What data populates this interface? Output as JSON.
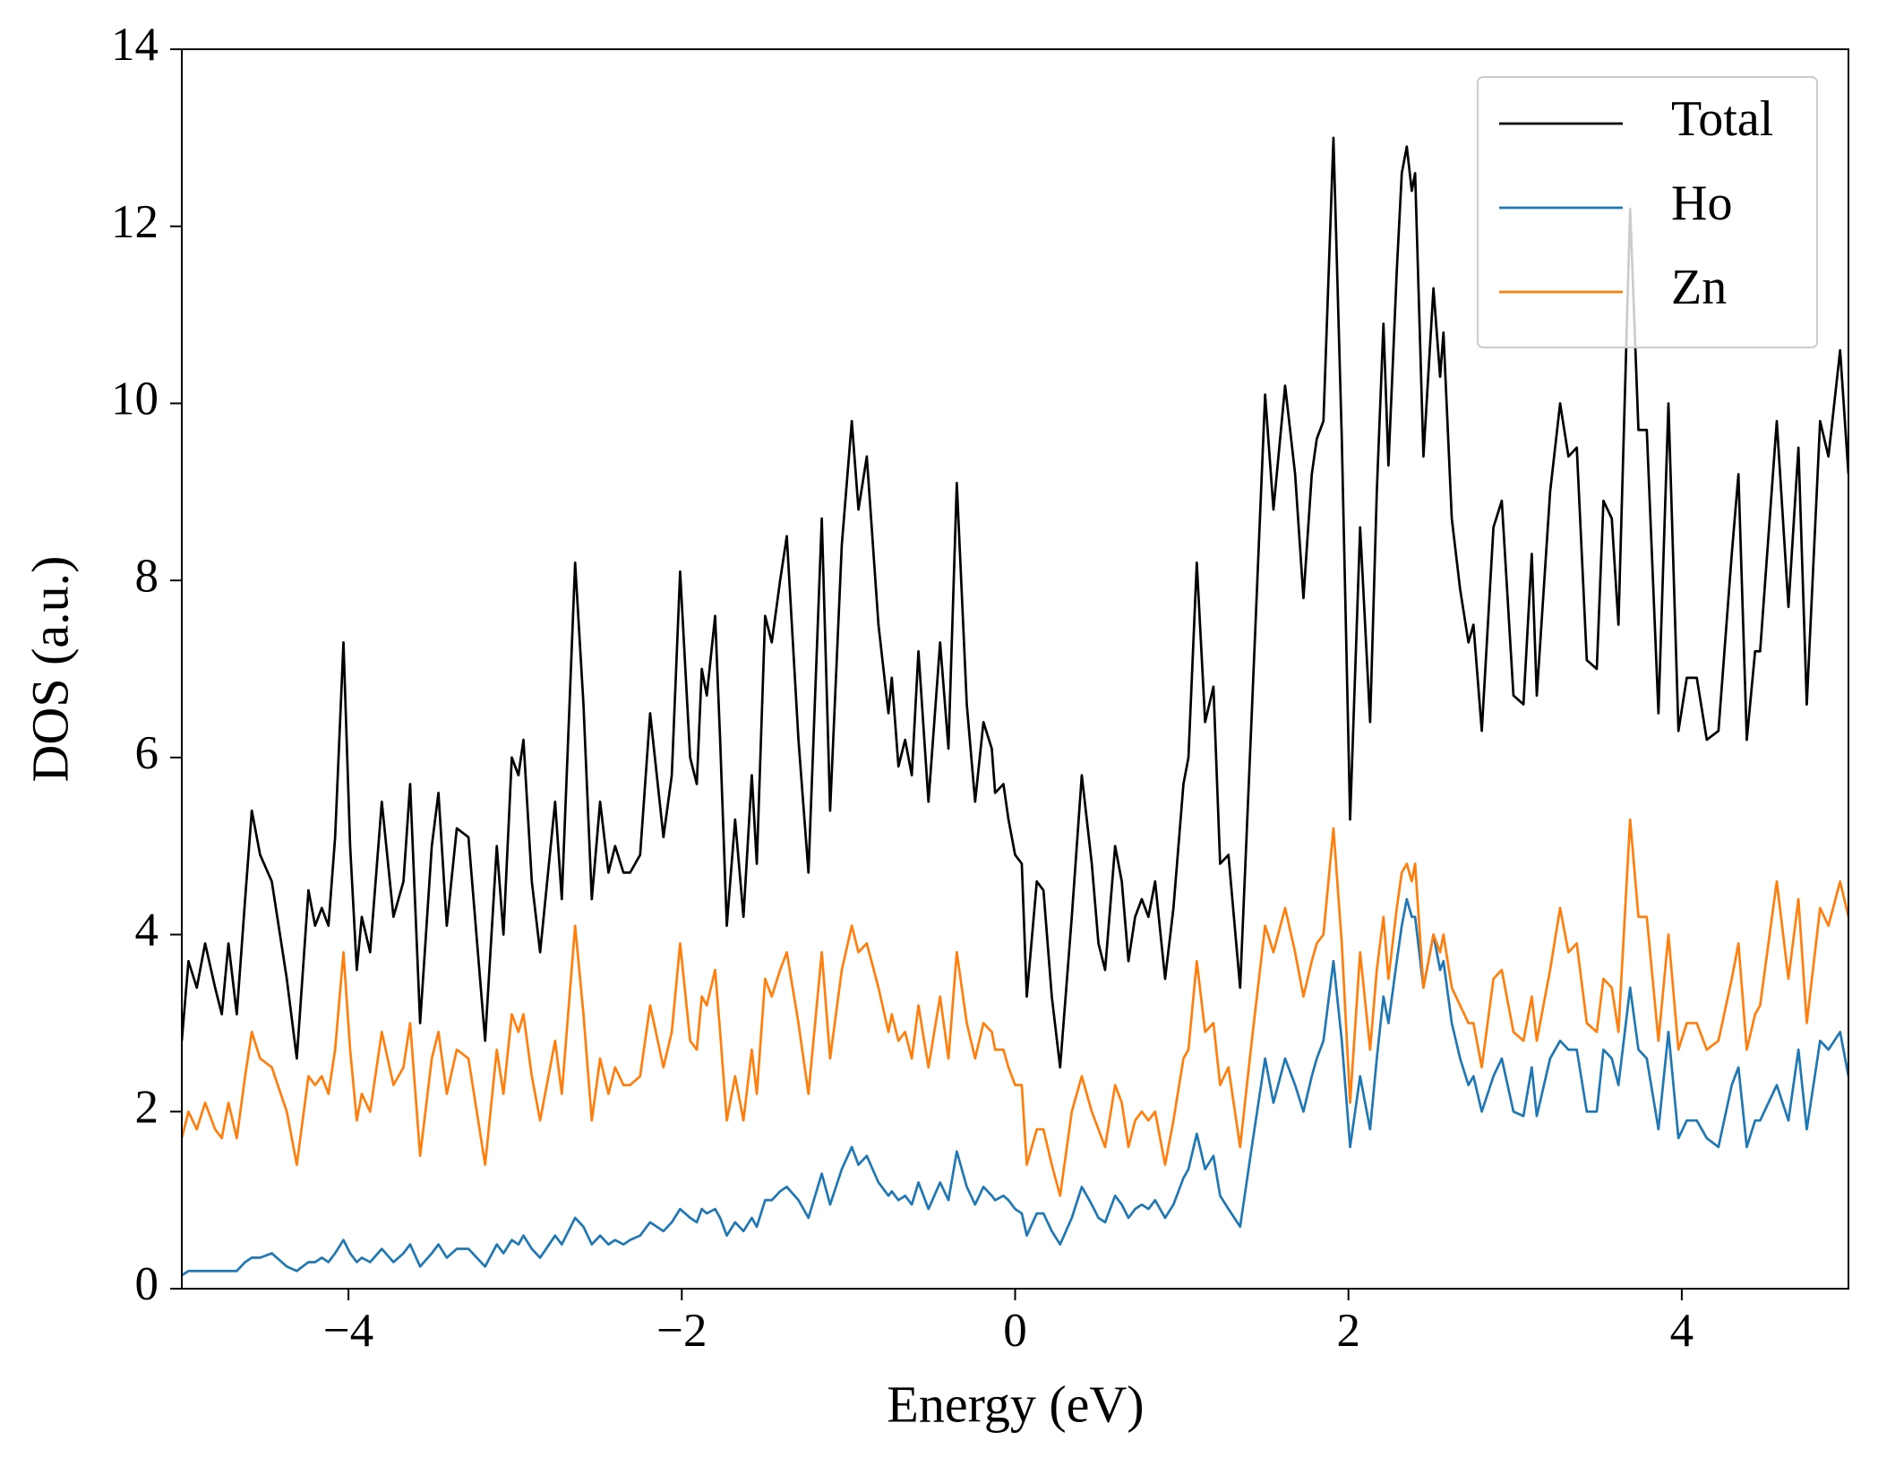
{
  "chart_data": {
    "type": "line",
    "xlabel": "Energy (eV)",
    "ylabel": "DOS (a.u.)",
    "xlim": [
      -5,
      5
    ],
    "ylim": [
      0,
      14
    ],
    "xticks": [
      {
        "value": -4,
        "label": "−4"
      },
      {
        "value": -2,
        "label": "−2"
      },
      0,
      2,
      4
    ],
    "yticks": [
      0,
      2,
      4,
      6,
      8,
      10,
      12,
      14
    ],
    "legend": "upper right",
    "x": [
      -5.0,
      -4.96,
      -4.91,
      -4.86,
      -4.8,
      -4.76,
      -4.72,
      -4.67,
      -4.62,
      -4.58,
      -4.53,
      -4.46,
      -4.37,
      -4.31,
      -4.24,
      -4.2,
      -4.16,
      -4.12,
      -4.08,
      -4.03,
      -3.99,
      -3.95,
      -3.92,
      -3.87,
      -3.8,
      -3.73,
      -3.67,
      -3.63,
      -3.57,
      -3.5,
      -3.46,
      -3.41,
      -3.35,
      -3.28,
      -3.18,
      -3.11,
      -3.07,
      -3.02,
      -2.98,
      -2.95,
      -2.9,
      -2.85,
      -2.76,
      -2.72,
      -2.64,
      -2.59,
      -2.54,
      -2.49,
      -2.44,
      -2.4,
      -2.35,
      -2.31,
      -2.25,
      -2.19,
      -2.11,
      -2.06,
      -2.01,
      -1.95,
      -1.91,
      -1.88,
      -1.85,
      -1.8,
      -1.77,
      -1.73,
      -1.68,
      -1.63,
      -1.58,
      -1.55,
      -1.5,
      -1.46,
      -1.41,
      -1.37,
      -1.3,
      -1.24,
      -1.16,
      -1.11,
      -1.04,
      -0.98,
      -0.94,
      -0.89,
      -0.82,
      -0.76,
      -0.74,
      -0.7,
      -0.66,
      -0.62,
      -0.58,
      -0.52,
      -0.45,
      -0.4,
      -0.35,
      -0.29,
      -0.24,
      -0.19,
      -0.14,
      -0.12,
      -0.07,
      -0.04,
      0.0,
      0.04,
      0.07,
      0.13,
      0.17,
      0.22,
      0.27,
      0.34,
      0.4,
      0.46,
      0.5,
      0.54,
      0.6,
      0.64,
      0.68,
      0.72,
      0.76,
      0.8,
      0.84,
      0.9,
      0.95,
      1.01,
      1.04,
      1.09,
      1.14,
      1.19,
      1.23,
      1.28,
      1.35,
      1.42,
      1.5,
      1.55,
      1.62,
      1.68,
      1.73,
      1.78,
      1.81,
      1.85,
      1.91,
      1.96,
      2.01,
      2.07,
      2.13,
      2.17,
      2.21,
      2.24,
      2.29,
      2.32,
      2.35,
      2.38,
      2.4,
      2.45,
      2.51,
      2.55,
      2.57,
      2.62,
      2.67,
      2.72,
      2.75,
      2.8,
      2.87,
      2.92,
      2.99,
      3.05,
      3.1,
      3.13,
      3.21,
      3.27,
      3.32,
      3.37,
      3.43,
      3.49,
      3.53,
      3.58,
      3.62,
      3.69,
      3.74,
      3.79,
      3.86,
      3.92,
      3.98,
      4.03,
      4.09,
      4.15,
      4.22,
      4.3,
      4.34,
      4.39,
      4.44,
      4.47,
      4.57,
      4.64,
      4.7,
      4.75,
      4.83,
      4.88,
      4.95,
      5.0
    ],
    "series": [
      {
        "name": "Total",
        "color": "#000000",
        "values": [
          2.8,
          3.7,
          3.4,
          3.9,
          3.4,
          3.1,
          3.9,
          3.1,
          4.4,
          5.4,
          4.9,
          4.6,
          3.5,
          2.6,
          4.5,
          4.1,
          4.3,
          4.1,
          5.1,
          7.3,
          5.0,
          3.6,
          4.2,
          3.8,
          5.5,
          4.2,
          4.6,
          5.7,
          3.0,
          5.0,
          5.6,
          4.1,
          5.2,
          5.1,
          2.8,
          5.0,
          4.0,
          6.0,
          5.8,
          6.2,
          4.6,
          3.8,
          5.5,
          4.4,
          8.2,
          6.6,
          4.4,
          5.5,
          4.7,
          5.0,
          4.7,
          4.7,
          4.9,
          6.5,
          5.1,
          5.8,
          8.1,
          6.0,
          5.7,
          7.0,
          6.7,
          7.6,
          6.2,
          4.1,
          5.3,
          4.2,
          5.8,
          4.8,
          7.6,
          7.3,
          8.0,
          8.5,
          6.2,
          4.7,
          8.7,
          5.4,
          8.4,
          9.8,
          8.8,
          9.4,
          7.5,
          6.5,
          6.9,
          5.9,
          6.2,
          5.8,
          7.2,
          5.5,
          7.3,
          6.1,
          9.1,
          6.6,
          5.5,
          6.4,
          6.1,
          5.6,
          5.7,
          5.3,
          4.9,
          4.8,
          3.3,
          4.6,
          4.5,
          3.3,
          2.5,
          4.2,
          5.8,
          4.8,
          3.9,
          3.6,
          5.0,
          4.6,
          3.7,
          4.2,
          4.4,
          4.2,
          4.6,
          3.5,
          4.3,
          5.7,
          6.0,
          8.2,
          6.4,
          6.8,
          4.8,
          4.9,
          3.4,
          6.5,
          10.1,
          8.8,
          10.2,
          9.2,
          7.8,
          9.2,
          9.6,
          9.8,
          13.0,
          9.6,
          5.3,
          8.6,
          6.4,
          9.0,
          10.9,
          9.3,
          11.5,
          12.6,
          12.9,
          12.4,
          12.6,
          9.4,
          11.3,
          10.3,
          10.8,
          8.7,
          7.9,
          7.3,
          7.5,
          6.3,
          8.6,
          8.9,
          6.7,
          6.6,
          8.3,
          6.7,
          9.0,
          10.0,
          9.4,
          9.5,
          7.1,
          7.0,
          8.9,
          8.7,
          7.5,
          12.2,
          9.7,
          9.7,
          6.5,
          10.0,
          6.3,
          6.9,
          6.9,
          6.2,
          6.3,
          8.3,
          9.2,
          6.2,
          7.2,
          7.2,
          9.8,
          7.7,
          9.5,
          6.6,
          9.8,
          9.4,
          10.6,
          9.2
        ]
      },
      {
        "name": "Ho",
        "color": "#1f77b4",
        "values": [
          0.15,
          0.2,
          0.2,
          0.2,
          0.2,
          0.2,
          0.2,
          0.2,
          0.3,
          0.35,
          0.35,
          0.4,
          0.25,
          0.2,
          0.3,
          0.3,
          0.35,
          0.3,
          0.4,
          0.55,
          0.4,
          0.3,
          0.35,
          0.3,
          0.45,
          0.3,
          0.4,
          0.5,
          0.25,
          0.4,
          0.5,
          0.35,
          0.45,
          0.45,
          0.25,
          0.5,
          0.4,
          0.55,
          0.5,
          0.6,
          0.45,
          0.35,
          0.6,
          0.5,
          0.8,
          0.7,
          0.5,
          0.6,
          0.5,
          0.55,
          0.5,
          0.55,
          0.6,
          0.75,
          0.65,
          0.75,
          0.9,
          0.8,
          0.75,
          0.9,
          0.85,
          0.9,
          0.8,
          0.6,
          0.75,
          0.65,
          0.8,
          0.7,
          1.0,
          1.0,
          1.1,
          1.15,
          1.0,
          0.8,
          1.3,
          0.95,
          1.35,
          1.6,
          1.4,
          1.5,
          1.2,
          1.05,
          1.1,
          1.0,
          1.05,
          0.95,
          1.2,
          0.9,
          1.2,
          1.0,
          1.55,
          1.15,
          0.95,
          1.15,
          1.05,
          1.0,
          1.05,
          1.0,
          0.9,
          0.85,
          0.6,
          0.85,
          0.85,
          0.65,
          0.5,
          0.8,
          1.15,
          0.95,
          0.8,
          0.75,
          1.05,
          0.95,
          0.8,
          0.9,
          0.95,
          0.9,
          1.0,
          0.8,
          0.95,
          1.25,
          1.35,
          1.75,
          1.35,
          1.5,
          1.05,
          0.9,
          0.7,
          1.6,
          2.6,
          2.1,
          2.6,
          2.3,
          2.0,
          2.4,
          2.6,
          2.8,
          3.7,
          2.8,
          1.6,
          2.4,
          1.8,
          2.6,
          3.3,
          3.0,
          3.7,
          4.1,
          4.4,
          4.2,
          4.2,
          3.4,
          4.0,
          3.6,
          3.7,
          3.0,
          2.6,
          2.3,
          2.4,
          2.0,
          2.4,
          2.6,
          2.0,
          1.95,
          2.5,
          1.95,
          2.6,
          2.8,
          2.7,
          2.7,
          2.0,
          2.0,
          2.7,
          2.6,
          2.3,
          3.4,
          2.7,
          2.6,
          1.8,
          2.9,
          1.7,
          1.9,
          1.9,
          1.7,
          1.6,
          2.3,
          2.5,
          1.6,
          1.9,
          1.9,
          2.3,
          1.9,
          2.7,
          1.8,
          2.8,
          2.7,
          2.9,
          2.4
        ]
      },
      {
        "name": "Zn",
        "color": "#ff7f0e",
        "values": [
          1.7,
          2.0,
          1.8,
          2.1,
          1.8,
          1.7,
          2.1,
          1.7,
          2.4,
          2.9,
          2.6,
          2.5,
          2.0,
          1.4,
          2.4,
          2.3,
          2.4,
          2.2,
          2.7,
          3.8,
          2.7,
          1.9,
          2.2,
          2.0,
          2.9,
          2.3,
          2.5,
          3.0,
          1.5,
          2.6,
          2.9,
          2.2,
          2.7,
          2.6,
          1.4,
          2.7,
          2.2,
          3.1,
          2.9,
          3.1,
          2.4,
          1.9,
          2.8,
          2.2,
          4.1,
          3.1,
          1.9,
          2.6,
          2.2,
          2.5,
          2.3,
          2.3,
          2.4,
          3.2,
          2.5,
          2.9,
          3.9,
          2.8,
          2.7,
          3.3,
          3.2,
          3.6,
          2.9,
          1.9,
          2.4,
          1.9,
          2.7,
          2.2,
          3.5,
          3.3,
          3.6,
          3.8,
          3.0,
          2.2,
          3.8,
          2.6,
          3.6,
          4.1,
          3.8,
          3.9,
          3.4,
          2.9,
          3.1,
          2.8,
          2.9,
          2.6,
          3.2,
          2.5,
          3.3,
          2.6,
          3.8,
          3.0,
          2.6,
          3.0,
          2.9,
          2.7,
          2.7,
          2.5,
          2.3,
          2.3,
          1.4,
          1.8,
          1.8,
          1.4,
          1.05,
          2.0,
          2.4,
          2.0,
          1.8,
          1.6,
          2.3,
          2.1,
          1.6,
          1.9,
          2.0,
          1.9,
          2.0,
          1.4,
          1.9,
          2.6,
          2.7,
          3.7,
          2.9,
          3.0,
          2.3,
          2.5,
          1.6,
          2.8,
          4.1,
          3.8,
          4.3,
          3.8,
          3.3,
          3.7,
          3.9,
          4.0,
          5.2,
          3.9,
          2.1,
          3.8,
          2.7,
          3.6,
          4.2,
          3.5,
          4.3,
          4.7,
          4.8,
          4.6,
          4.8,
          3.4,
          4.0,
          3.8,
          4.0,
          3.4,
          3.2,
          3.0,
          3.0,
          2.5,
          3.5,
          3.6,
          2.9,
          2.8,
          3.3,
          2.8,
          3.6,
          4.3,
          3.8,
          3.9,
          3.0,
          2.9,
          3.5,
          3.4,
          2.9,
          5.3,
          4.2,
          4.2,
          2.8,
          4.0,
          2.7,
          3.0,
          3.0,
          2.7,
          2.8,
          3.5,
          3.9,
          2.7,
          3.1,
          3.2,
          4.6,
          3.5,
          4.4,
          3.0,
          4.3,
          4.1,
          4.6,
          4.2
        ]
      }
    ]
  }
}
